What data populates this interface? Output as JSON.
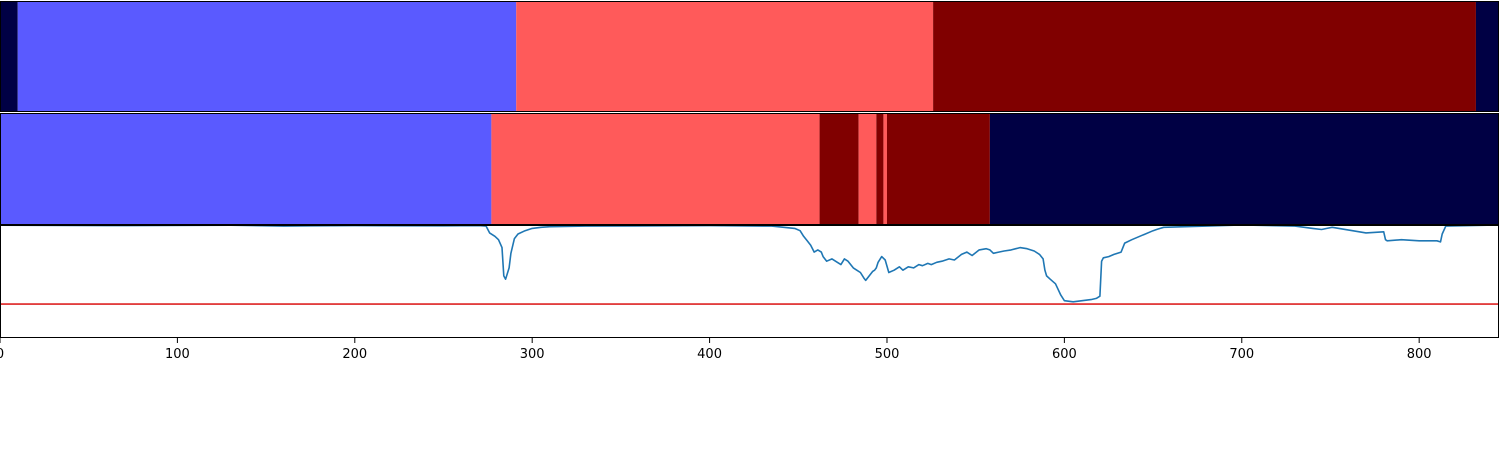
{
  "chart_data": {
    "type": "line",
    "title": "",
    "xlabel": "",
    "ylabel": "",
    "xlim": [
      0,
      845
    ],
    "xticks": [
      0,
      100,
      200,
      300,
      400,
      500,
      600,
      700,
      800
    ],
    "xtick_labels": [
      "0",
      "100",
      "200",
      "300",
      "400",
      "500",
      "600",
      "700",
      "800"
    ],
    "colors": {
      "blue": "#5a5aff",
      "light_red": "#ff5a5a",
      "dark_red": "#800000",
      "navy": "#000044",
      "line": "#1f77b4",
      "threshold": "#dd2222"
    },
    "segment_rows": [
      {
        "name": "",
        "segments": [
          {
            "start": 0,
            "end": 10,
            "color": "navy"
          },
          {
            "start": 10,
            "end": 291,
            "color": "blue"
          },
          {
            "start": 291,
            "end": 526,
            "color": "light_red"
          },
          {
            "start": 526,
            "end": 832,
            "color": "dark_red"
          },
          {
            "start": 832,
            "end": 845,
            "color": "navy"
          }
        ]
      },
      {
        "name": "",
        "segments": [
          {
            "start": 0,
            "end": 277,
            "color": "blue"
          },
          {
            "start": 277,
            "end": 462,
            "color": "light_red"
          },
          {
            "start": 462,
            "end": 484,
            "color": "dark_red"
          },
          {
            "start": 484,
            "end": 494,
            "color": "light_red"
          },
          {
            "start": 494,
            "end": 498,
            "color": "dark_red"
          },
          {
            "start": 498,
            "end": 500,
            "color": "light_red"
          },
          {
            "start": 500,
            "end": 558,
            "color": "dark_red"
          },
          {
            "start": 558,
            "end": 845,
            "color": "navy"
          }
        ]
      }
    ],
    "line_panel": {
      "ylim": [
        0,
        1
      ],
      "threshold": 0.3,
      "series": [
        {
          "name": "",
          "x": [
            0,
            60,
            130,
            160,
            175,
            200,
            250,
            270,
            274,
            276,
            279,
            281,
            283,
            284,
            285,
            287,
            288,
            290,
            292,
            296,
            300,
            305,
            310,
            330,
            400,
            435,
            448,
            451,
            453,
            455,
            457,
            459,
            461,
            463,
            464,
            466,
            469,
            472,
            474,
            476,
            478,
            479,
            481,
            483,
            485,
            487,
            488,
            490,
            492,
            493,
            494,
            495,
            497,
            499,
            501,
            504,
            507,
            509,
            512,
            515,
            518,
            520,
            523,
            525,
            528,
            531,
            535,
            538,
            542,
            545,
            548,
            552,
            556,
            558,
            560,
            563,
            566,
            570,
            575,
            579,
            583,
            586,
            588,
            589,
            590,
            592,
            595,
            598,
            600,
            605,
            610,
            615,
            618,
            619,
            620,
            621,
            622,
            625,
            628,
            632,
            634,
            638,
            644,
            650,
            652,
            654,
            656,
            680,
            700,
            730,
            740,
            745,
            748,
            751,
            770,
            780,
            781,
            782,
            790,
            800,
            810,
            812,
            813,
            815,
            845
          ],
          "y": [
            0.998,
            0.995,
            0.998,
            0.99,
            0.993,
            0.995,
            0.993,
            0.995,
            0.99,
            0.93,
            0.9,
            0.87,
            0.8,
            0.55,
            0.52,
            0.62,
            0.75,
            0.88,
            0.92,
            0.95,
            0.97,
            0.98,
            0.985,
            0.99,
            0.995,
            0.99,
            0.97,
            0.95,
            0.9,
            0.86,
            0.82,
            0.76,
            0.78,
            0.76,
            0.72,
            0.68,
            0.7,
            0.67,
            0.65,
            0.7,
            0.68,
            0.66,
            0.62,
            0.6,
            0.58,
            0.53,
            0.51,
            0.55,
            0.59,
            0.6,
            0.62,
            0.67,
            0.72,
            0.69,
            0.58,
            0.6,
            0.63,
            0.6,
            0.63,
            0.62,
            0.65,
            0.64,
            0.66,
            0.65,
            0.67,
            0.68,
            0.7,
            0.69,
            0.74,
            0.76,
            0.73,
            0.78,
            0.79,
            0.78,
            0.75,
            0.76,
            0.77,
            0.78,
            0.8,
            0.79,
            0.77,
            0.74,
            0.7,
            0.6,
            0.55,
            0.52,
            0.48,
            0.38,
            0.33,
            0.32,
            0.33,
            0.34,
            0.35,
            0.36,
            0.37,
            0.68,
            0.71,
            0.72,
            0.74,
            0.76,
            0.84,
            0.87,
            0.91,
            0.95,
            0.96,
            0.97,
            0.98,
            0.99,
            1.0,
            0.99,
            0.97,
            0.96,
            0.97,
            0.98,
            0.93,
            0.94,
            0.87,
            0.86,
            0.87,
            0.86,
            0.86,
            0.85,
            0.92,
            0.99,
            1.0
          ]
        }
      ]
    }
  }
}
